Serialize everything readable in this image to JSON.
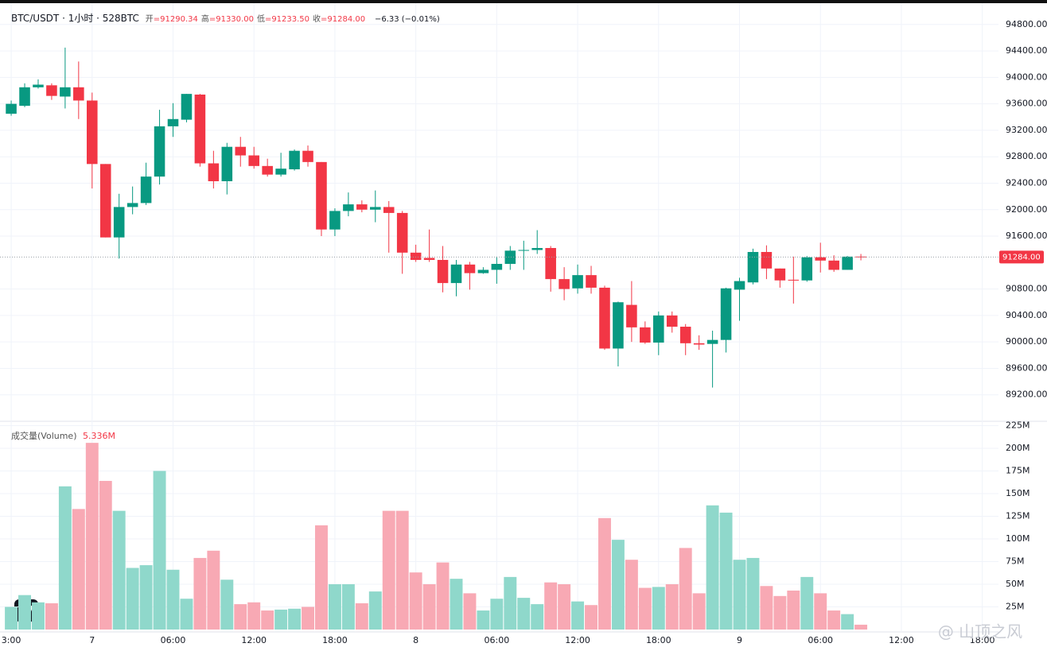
{
  "chart_data": [
    {
      "type": "candlestick",
      "title": "BTC/USDT · 1小时 · 528BTC",
      "ohlc_legend": [
        {
          "label": "开",
          "value": "=91290.34"
        },
        {
          "label": "高",
          "value": "=91330.00"
        },
        {
          "label": "低",
          "value": "=91233.50"
        },
        {
          "label": "收",
          "value": "=91284.00"
        }
      ],
      "change": "−6.33 (−0.01%)",
      "xlim": [
        -0.83,
        73.2
      ],
      "xticks": [
        {
          "value": 0,
          "label": "3:00"
        },
        {
          "value": 6,
          "label": "7"
        },
        {
          "value": 12,
          "label": "06:00"
        },
        {
          "value": 18,
          "label": "12:00"
        },
        {
          "value": 24,
          "label": "18:00"
        },
        {
          "value": 30,
          "label": "8"
        },
        {
          "value": 36,
          "label": "06:00"
        },
        {
          "value": 42,
          "label": "12:00"
        },
        {
          "value": 48,
          "label": "18:00"
        },
        {
          "value": 54,
          "label": "9"
        },
        {
          "value": 60,
          "label": "06:00"
        },
        {
          "value": 66,
          "label": "12:00"
        },
        {
          "value": 72,
          "label": "18:00"
        }
      ],
      "ylim": [
        88800,
        95170
      ],
      "yticks": [
        {
          "value": 94800,
          "label": "94800.00"
        },
        {
          "value": 94400,
          "label": "94400.00"
        },
        {
          "value": 94000,
          "label": "94000.00"
        },
        {
          "value": 93600,
          "label": "93600.00"
        },
        {
          "value": 93200,
          "label": "93200.00"
        },
        {
          "value": 92800,
          "label": "92800.00"
        },
        {
          "value": 92400,
          "label": "92400.00"
        },
        {
          "value": 92000,
          "label": "92000.00"
        },
        {
          "value": 91600,
          "label": "91600.00"
        },
        {
          "value": 90800,
          "label": "90800.00"
        },
        {
          "value": 90400,
          "label": "90400.00"
        },
        {
          "value": 90000,
          "label": "90000.00"
        },
        {
          "value": 89600,
          "label": "89600.00"
        },
        {
          "value": 89200,
          "label": "89200.00"
        }
      ],
      "grid": true,
      "up_color": "#089981",
      "down_color": "#f23645",
      "last_price_label": "91284.00",
      "open": [
        93450,
        93570,
        93850,
        93880,
        93710,
        93850,
        93650,
        92690,
        91580,
        92040,
        92100,
        92500,
        93260,
        93360,
        93740,
        92700,
        92430,
        92950,
        92820,
        92660,
        92530,
        92610,
        92890,
        92720,
        91700,
        91980,
        92080,
        92000,
        92040,
        91950,
        91350,
        91270,
        91240,
        90890,
        91170,
        91040,
        91090,
        91180,
        91380,
        91390,
        91420,
        90950,
        90810,
        91010,
        90820,
        89900,
        90560,
        90220,
        89990,
        90400,
        90230,
        89980,
        89970,
        90030,
        90790,
        90900,
        91360,
        91110,
        90940,
        90930,
        91280,
        91230,
        91090,
        91290.34
      ],
      "high": [
        93650,
        93910,
        93970,
        93910,
        94450,
        94240,
        93770,
        92690,
        92240,
        92350,
        92710,
        93510,
        93610,
        93750,
        93750,
        92890,
        93010,
        93100,
        92950,
        92770,
        92860,
        92910,
        92970,
        92720,
        92020,
        92260,
        92140,
        92290,
        92130,
        91980,
        91470,
        91700,
        91450,
        91240,
        91210,
        91130,
        91290,
        91450,
        91530,
        91690,
        91450,
        91130,
        91170,
        91150,
        90850,
        90610,
        90920,
        90310,
        90460,
        90460,
        90270,
        90100,
        90170,
        90820,
        90970,
        91410,
        91460,
        91110,
        91290,
        91300,
        91500,
        91310,
        91300,
        91330
      ],
      "low": [
        93420,
        93550,
        93830,
        93660,
        93530,
        93370,
        92320,
        91580,
        91260,
        91930,
        92070,
        92380,
        93100,
        93320,
        92650,
        92320,
        92230,
        92650,
        92620,
        92500,
        92500,
        92590,
        92650,
        91600,
        91600,
        91900,
        91960,
        91810,
        91350,
        91030,
        91210,
        91210,
        90750,
        90690,
        90790,
        91030,
        90880,
        91090,
        91090,
        91330,
        90760,
        90630,
        90730,
        90730,
        89880,
        89630,
        90000,
        89970,
        89800,
        90140,
        89800,
        89880,
        89310,
        89840,
        90320,
        90870,
        90950,
        90820,
        90580,
        90910,
        91050,
        91060,
        91090,
        91233.5
      ],
      "close": [
        93600,
        93850,
        93890,
        93720,
        93850,
        93650,
        92690,
        91580,
        92040,
        92100,
        92500,
        93260,
        93370,
        93750,
        92700,
        92430,
        92950,
        92820,
        92660,
        92530,
        92620,
        92890,
        92720,
        91700,
        91980,
        92080,
        92000,
        92040,
        91950,
        91350,
        91240,
        91240,
        90890,
        91170,
        91040,
        91090,
        91180,
        91380,
        91390,
        91420,
        90950,
        90800,
        91010,
        90820,
        89900,
        90600,
        90220,
        89990,
        90400,
        90230,
        89980,
        89960,
        90030,
        90810,
        90920,
        91360,
        91110,
        90930,
        90930,
        91280,
        91230,
        91090,
        91290,
        91284
      ]
    },
    {
      "type": "bar",
      "name": "成交量(Volume)",
      "value_label": "5.336M",
      "ylim": [
        0,
        229.8
      ],
      "yticks": [
        {
          "value": 225,
          "label": "225M"
        },
        {
          "value": 200,
          "label": "200M"
        },
        {
          "value": 175,
          "label": "175M"
        },
        {
          "value": 150,
          "label": "150M"
        },
        {
          "value": 125,
          "label": "125M"
        },
        {
          "value": 100,
          "label": "100M"
        },
        {
          "value": 75,
          "label": "75M"
        },
        {
          "value": 50,
          "label": "50M"
        },
        {
          "value": 25,
          "label": "25M"
        }
      ],
      "up_color": "#8fd8cb",
      "down_color": "#f8a9b4",
      "values": [
        25,
        38,
        30,
        29,
        158,
        133,
        206,
        164,
        131,
        68,
        71,
        175,
        66,
        34,
        79,
        87,
        55,
        28,
        30,
        21,
        22,
        23,
        25,
        115,
        50,
        50,
        29,
        42,
        131,
        131,
        63,
        50,
        74,
        56,
        40,
        21,
        34,
        58,
        35,
        28,
        52,
        50,
        31,
        27,
        123,
        99,
        77,
        46,
        47,
        50,
        90,
        40,
        137,
        129,
        77,
        79,
        48,
        37,
        43,
        58,
        40,
        21,
        17,
        5.336
      ]
    }
  ],
  "watermark": "@ 山顶之风"
}
